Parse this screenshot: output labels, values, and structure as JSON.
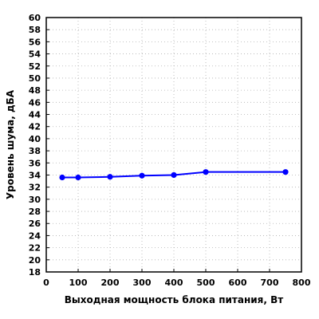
{
  "chart_data": {
    "type": "line",
    "xlabel": "Выходная мощность блока питания, Вт",
    "ylabel": "Уровень шума, дБА",
    "xlim": [
      0,
      800
    ],
    "ylim": [
      18,
      60
    ],
    "x_ticks": [
      0,
      100,
      200,
      300,
      400,
      500,
      600,
      700,
      800
    ],
    "y_ticks": [
      18,
      20,
      22,
      24,
      26,
      28,
      30,
      32,
      34,
      36,
      38,
      40,
      42,
      44,
      46,
      48,
      50,
      52,
      54,
      56,
      58,
      60
    ],
    "grid": true,
    "series": [
      {
        "color": "#0000ff",
        "x": [
          50,
          100,
          200,
          300,
          400,
          500,
          750
        ],
        "y": [
          33.6,
          33.6,
          33.7,
          33.9,
          34.0,
          34.5,
          34.5
        ]
      }
    ]
  }
}
